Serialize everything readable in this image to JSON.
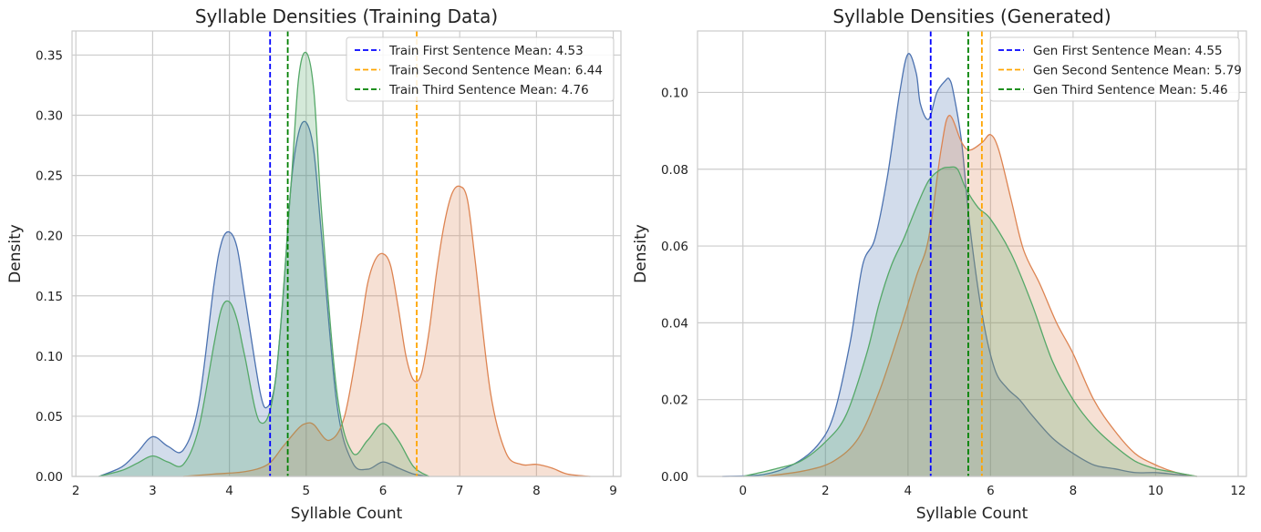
{
  "chart_data": [
    {
      "type": "area",
      "title": "Syllable Densities (Training Data)",
      "xlabel": "Syllable Count",
      "ylabel": "Density",
      "xlim": [
        1.95,
        9.1
      ],
      "ylim": [
        0,
        0.37
      ],
      "xticks": [
        2,
        3,
        4,
        5,
        6,
        7,
        8,
        9
      ],
      "yticks": [
        0.0,
        0.05,
        0.1,
        0.15,
        0.2,
        0.25,
        0.3,
        0.35
      ],
      "ytick_labels": [
        "0.00",
        "0.05",
        "0.10",
        "0.15",
        "0.20",
        "0.25",
        "0.30",
        "0.35"
      ],
      "grid": true,
      "legend_position": "top-right",
      "series": [
        {
          "color": "#4c72b0",
          "x": [
            2.3,
            2.6,
            2.8,
            3.0,
            3.2,
            3.4,
            3.6,
            3.8,
            3.9,
            4.0,
            4.1,
            4.2,
            4.4,
            4.5,
            4.6,
            4.7,
            4.8,
            4.9,
            5.0,
            5.1,
            5.2,
            5.4,
            5.6,
            5.8,
            6.0,
            6.2,
            6.4,
            6.6
          ],
          "y": [
            0.0,
            0.008,
            0.02,
            0.033,
            0.025,
            0.022,
            0.06,
            0.16,
            0.195,
            0.203,
            0.19,
            0.15,
            0.07,
            0.058,
            0.08,
            0.15,
            0.24,
            0.285,
            0.294,
            0.27,
            0.2,
            0.06,
            0.012,
            0.006,
            0.012,
            0.007,
            0.002,
            0.0
          ]
        },
        {
          "color": "#dd8452",
          "x": [
            3.4,
            3.8,
            4.2,
            4.5,
            4.7,
            4.9,
            5.0,
            5.1,
            5.3,
            5.5,
            5.7,
            5.8,
            5.9,
            6.0,
            6.1,
            6.2,
            6.3,
            6.4,
            6.5,
            6.6,
            6.7,
            6.8,
            6.9,
            7.0,
            7.1,
            7.2,
            7.4,
            7.6,
            7.8,
            8.0,
            8.2,
            8.4,
            8.7
          ],
          "y": [
            0.0,
            0.002,
            0.004,
            0.01,
            0.025,
            0.04,
            0.044,
            0.043,
            0.03,
            0.05,
            0.12,
            0.16,
            0.18,
            0.185,
            0.175,
            0.14,
            0.1,
            0.08,
            0.085,
            0.12,
            0.17,
            0.21,
            0.235,
            0.241,
            0.23,
            0.18,
            0.07,
            0.02,
            0.01,
            0.01,
            0.007,
            0.002,
            0.0
          ]
        },
        {
          "color": "#55a868",
          "x": [
            2.3,
            2.6,
            2.8,
            3.0,
            3.2,
            3.4,
            3.6,
            3.8,
            3.9,
            4.0,
            4.1,
            4.2,
            4.4,
            4.6,
            4.8,
            4.9,
            5.0,
            5.1,
            5.2,
            5.4,
            5.6,
            5.8,
            6.0,
            6.2,
            6.4,
            6.6
          ],
          "y": [
            0.0,
            0.005,
            0.011,
            0.017,
            0.012,
            0.01,
            0.04,
            0.11,
            0.14,
            0.145,
            0.13,
            0.1,
            0.045,
            0.08,
            0.24,
            0.33,
            0.352,
            0.32,
            0.22,
            0.07,
            0.02,
            0.03,
            0.044,
            0.03,
            0.008,
            0.0
          ]
        }
      ],
      "mean_lines": [
        {
          "label": "Train First Sentence Mean: 4.53",
          "value": 4.53,
          "color": "#0000ff"
        },
        {
          "label": "Train Second Sentence Mean: 6.44",
          "value": 6.44,
          "color": "#ffa500"
        },
        {
          "label": "Train Third Sentence Mean: 4.76",
          "value": 4.76,
          "color": "#008000"
        }
      ]
    },
    {
      "type": "area",
      "title": "Syllable Densities (Generated)",
      "xlabel": "Syllable Count",
      "ylabel": "Density",
      "xlim": [
        -1.1,
        12.2
      ],
      "ylim": [
        0,
        0.116
      ],
      "xticks": [
        0,
        2,
        4,
        6,
        8,
        10,
        12
      ],
      "yticks": [
        0.0,
        0.02,
        0.04,
        0.06,
        0.08,
        0.1
      ],
      "ytick_labels": [
        "0.00",
        "0.02",
        "0.04",
        "0.06",
        "0.08",
        "0.10"
      ],
      "grid": true,
      "legend_position": "top-right",
      "series": [
        {
          "color": "#4c72b0",
          "x": [
            -0.5,
            0.5,
            1.2,
            1.8,
            2.2,
            2.6,
            2.9,
            3.2,
            3.5,
            3.8,
            4.0,
            4.2,
            4.3,
            4.5,
            4.7,
            4.9,
            5.0,
            5.1,
            5.3,
            5.5,
            5.8,
            6.1,
            6.4,
            6.7,
            7.0,
            7.5,
            8.0,
            8.5,
            9.0,
            9.5,
            10.0,
            10.5,
            11.0
          ],
          "y": [
            0.0,
            0.0005,
            0.003,
            0.008,
            0.016,
            0.035,
            0.055,
            0.062,
            0.078,
            0.1,
            0.11,
            0.105,
            0.097,
            0.093,
            0.1,
            0.103,
            0.1035,
            0.1,
            0.087,
            0.065,
            0.042,
            0.028,
            0.023,
            0.02,
            0.016,
            0.01,
            0.006,
            0.003,
            0.002,
            0.001,
            0.001,
            0.0005,
            0.0
          ]
        },
        {
          "color": "#dd8452",
          "x": [
            0.5,
            1.5,
            2.2,
            2.8,
            3.3,
            3.8,
            4.2,
            4.5,
            4.8,
            5.0,
            5.3,
            5.5,
            5.8,
            6.0,
            6.2,
            6.5,
            6.8,
            7.2,
            7.6,
            8.0,
            8.5,
            9.0,
            9.5,
            10.0,
            10.5,
            11.0
          ],
          "y": [
            0.0,
            0.0015,
            0.004,
            0.01,
            0.022,
            0.038,
            0.052,
            0.062,
            0.085,
            0.094,
            0.087,
            0.085,
            0.087,
            0.089,
            0.085,
            0.072,
            0.059,
            0.05,
            0.04,
            0.032,
            0.02,
            0.012,
            0.006,
            0.003,
            0.001,
            0.0
          ]
        },
        {
          "color": "#55a868",
          "x": [
            0.0,
            0.8,
            1.4,
            2.0,
            2.5,
            3.0,
            3.3,
            3.6,
            3.9,
            4.2,
            4.5,
            4.8,
            5.0,
            5.2,
            5.4,
            5.7,
            6.0,
            6.5,
            7.0,
            7.5,
            8.0,
            8.5,
            9.0,
            9.5,
            10.0,
            10.5,
            11.0
          ],
          "y": [
            0.0,
            0.002,
            0.004,
            0.009,
            0.016,
            0.032,
            0.045,
            0.055,
            0.062,
            0.07,
            0.077,
            0.08,
            0.0805,
            0.08,
            0.075,
            0.07,
            0.067,
            0.058,
            0.045,
            0.03,
            0.02,
            0.013,
            0.008,
            0.004,
            0.002,
            0.001,
            0.0
          ]
        }
      ],
      "mean_lines": [
        {
          "label": "Gen First Sentence Mean: 4.55",
          "value": 4.55,
          "color": "#0000ff"
        },
        {
          "label": "Gen Second Sentence Mean: 5.79",
          "value": 5.79,
          "color": "#ffa500"
        },
        {
          "label": "Gen Third Sentence Mean: 5.46",
          "value": 5.46,
          "color": "#008000"
        }
      ]
    }
  ]
}
